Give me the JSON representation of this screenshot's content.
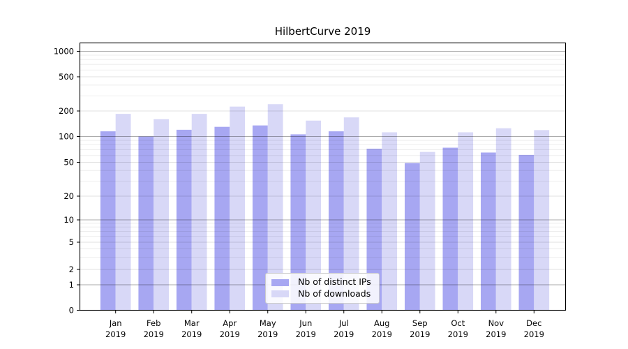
{
  "chart_data": {
    "type": "bar",
    "title": "HilbertCurve 2019",
    "categories": [
      "Jan 2019",
      "Feb 2019",
      "Mar 2019",
      "Apr 2019",
      "May 2019",
      "Jun 2019",
      "Jul 2019",
      "Aug 2019",
      "Sep 2019",
      "Oct 2019",
      "Nov 2019",
      "Dec 2019"
    ],
    "series": [
      {
        "name": "Nb of distinct IPs",
        "color": "#a7a7f2",
        "values": [
          115,
          100,
          120,
          130,
          135,
          106,
          115,
          72,
          49,
          74,
          65,
          61
        ]
      },
      {
        "name": "Nb of downloads",
        "color": "#d8d8f7",
        "values": [
          185,
          160,
          185,
          225,
          240,
          154,
          168,
          112,
          66,
          112,
          125,
          119
        ]
      }
    ],
    "yscale": "symlog",
    "y_tick_labels": [
      "0",
      "1",
      "2",
      "5",
      "10",
      "20",
      "50",
      "100",
      "200",
      "500",
      "1000"
    ],
    "y_tick_values": [
      0,
      1,
      2,
      5,
      10,
      20,
      50,
      100,
      200,
      500,
      1000
    ],
    "ylim": [
      0,
      1300
    ],
    "xlabel": "",
    "ylabel": "",
    "grid": true,
    "legend_position": "lower center"
  }
}
